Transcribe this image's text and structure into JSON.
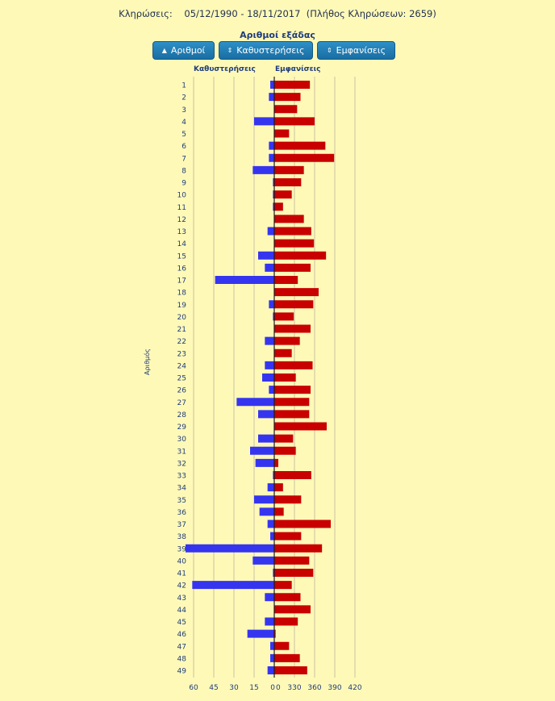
{
  "header": {
    "label": "Κληρώσεις:",
    "range": "05/12/1990 - 18/11/2017",
    "count": "(Πλήθος Κληρώσεων: 2659)"
  },
  "section_title": "Αριθμοί εξάδας",
  "buttons": {
    "numbers": {
      "label": "Αριθμοί",
      "icon": "up-arrow-icon"
    },
    "delays": {
      "label": "Καθυστερήσεις",
      "icon": "sort-arrows-icon"
    },
    "appearances": {
      "label": "Εμφανίσεις",
      "icon": "sort-arrows-icon"
    }
  },
  "columns": {
    "delays": "Καθυστερήσεις",
    "appearances": "Εμφανίσεις"
  },
  "y_axis_label": "Αριθμός",
  "colors": {
    "delay_bar": "#3535f0",
    "appearance_bar": "#c80000",
    "background": "#fff9b8",
    "grid": "#c9c2a0"
  },
  "chart_data": {
    "type": "bar",
    "orientation": "horizontal",
    "categories": [
      "1",
      "2",
      "3",
      "4",
      "5",
      "6",
      "7",
      "8",
      "9",
      "10",
      "11",
      "12",
      "13",
      "14",
      "15",
      "16",
      "17",
      "18",
      "19",
      "20",
      "21",
      "22",
      "23",
      "24",
      "25",
      "26",
      "27",
      "28",
      "29",
      "30",
      "31",
      "32",
      "33",
      "34",
      "35",
      "36",
      "37",
      "38",
      "39",
      "40",
      "41",
      "42",
      "43",
      "44",
      "45",
      "46",
      "47",
      "48",
      "49"
    ],
    "series": [
      {
        "name": "Καθυστερήσεις",
        "side": "left",
        "values": [
          3,
          4,
          0,
          15,
          0,
          4,
          4,
          16,
          1,
          1,
          1,
          0,
          5,
          0,
          12,
          7,
          44,
          0,
          4,
          1,
          0,
          7,
          0,
          7,
          9,
          4,
          28,
          12,
          0,
          12,
          18,
          14,
          1,
          5,
          15,
          11,
          5,
          3,
          66,
          16,
          1,
          61,
          7,
          0,
          7,
          20,
          3,
          3,
          5
        ]
      },
      {
        "name": "Εμφανίσεις",
        "side": "right",
        "values": [
          353,
          339,
          334,
          360,
          322,
          376,
          389,
          344,
          340,
          326,
          313,
          344,
          355,
          359,
          377,
          354,
          335,
          366,
          358,
          329,
          354,
          338,
          326,
          357,
          332,
          354,
          352,
          352,
          378,
          328,
          332,
          306,
          355,
          313,
          340,
          314,
          384,
          340,
          371,
          352,
          358,
          326,
          339,
          354,
          335,
          302,
          322,
          338,
          349
        ]
      }
    ],
    "x_ticks_left": [
      "60",
      "45",
      "30",
      "15",
      "0"
    ],
    "x_ticks_right": [
      "0",
      "330",
      "360",
      "390",
      "420"
    ],
    "delays_range": [
      0,
      60
    ],
    "appearances_range": [
      300,
      420
    ],
    "grid": true
  }
}
